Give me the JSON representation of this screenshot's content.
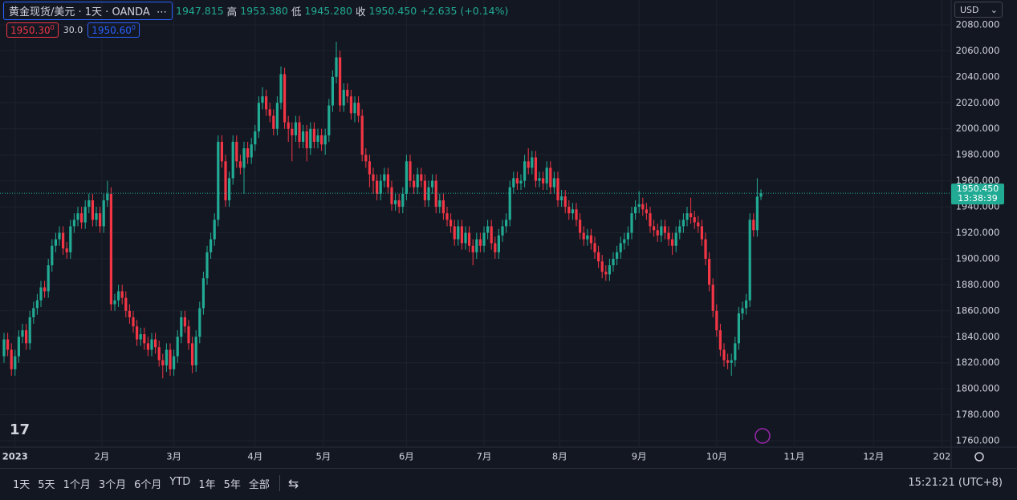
{
  "header": {
    "symbol": "黄金现货/美元 · 1天 · OANDA",
    "open": "1947.815",
    "high_label": "高",
    "high": "1953.380",
    "low_label": "低",
    "low": "1945.280",
    "close_label": "收",
    "close": "1950.450",
    "change": "+2.635 (+0.14%)"
  },
  "trade": {
    "sell": "1950.30",
    "sell_sup": "0",
    "spread": "30.0",
    "buy": "1950.60",
    "buy_sup": "0"
  },
  "currency": "USD",
  "toolbar": {
    "ranges": [
      "1天",
      "5天",
      "1个月",
      "3个月",
      "6个月",
      "YTD",
      "1年",
      "5年",
      "全部"
    ],
    "clock": "15:21:21 (UTC+8)"
  },
  "chart_data": {
    "type": "candlestick",
    "up_color": "#22ab94",
    "down_color": "#f23645",
    "grid": true,
    "open": [
      1825,
      1838,
      1830,
      1815,
      1825,
      1840,
      1845,
      1835,
      1855,
      1862,
      1868,
      1878,
      1875,
      1895,
      1910,
      1915,
      1920,
      1908,
      1905,
      1925,
      1930,
      1935,
      1928,
      1940,
      1945,
      1930,
      1935,
      1925,
      1945,
      1950,
      1865,
      1868,
      1875,
      1870,
      1860,
      1855,
      1848,
      1838,
      1842,
      1835,
      1830,
      1838,
      1832,
      1822,
      1818,
      1830,
      1815,
      1825,
      1840,
      1855,
      1848,
      1835,
      1818,
      1840,
      1862,
      1885,
      1905,
      1915,
      1930,
      1990,
      1975,
      1945,
      1962,
      1990,
      1975,
      1970,
      1985,
      1978,
      1988,
      1998,
      2020,
      2025,
      2015,
      2010,
      2000,
      2020,
      2042,
      2005,
      2000,
      1995,
      2005,
      1990,
      1998,
      1985,
      2000,
      1990,
      1995,
      1988,
      1995,
      2018,
      2040,
      2055,
      2018,
      2030,
      2025,
      2012,
      2020,
      2010,
      1980,
      1975,
      1965,
      1960,
      1950,
      1960,
      1965,
      1955,
      1942,
      1945,
      1940,
      1950,
      1975,
      1960,
      1955,
      1965,
      1960,
      1945,
      1955,
      1960,
      1940,
      1945,
      1935,
      1930,
      1925,
      1915,
      1925,
      1912,
      1920,
      1910,
      1905,
      1915,
      1910,
      1920,
      1925,
      1912,
      1905,
      1918,
      1925,
      1930,
      1955,
      1962,
      1958,
      1960,
      1975,
      1970,
      1978,
      1960,
      1962,
      1958,
      1970,
      1955,
      1962,
      1945,
      1948,
      1940,
      1935,
      1938,
      1930,
      1920,
      1915,
      1918,
      1912,
      1905,
      1898,
      1890,
      1888,
      1895,
      1900,
      1905,
      1912,
      1915,
      1920,
      1935,
      1940,
      1942,
      1938,
      1935,
      1925,
      1922,
      1918,
      1925,
      1920,
      1915,
      1910,
      1920,
      1925,
      1930,
      1935,
      1932,
      1928,
      1925,
      1915,
      1900,
      1880,
      1860,
      1845,
      1830,
      1822,
      1820,
      1822,
      1835,
      1858,
      1862,
      1868,
      1930,
      1922,
      1947.815
    ],
    "high": [
      1843,
      1843,
      1835,
      1830,
      1845,
      1850,
      1850,
      1860,
      1867,
      1873,
      1883,
      1883,
      1900,
      1915,
      1920,
      1925,
      1925,
      1913,
      1930,
      1935,
      1940,
      1940,
      1945,
      1950,
      1950,
      1940,
      1940,
      1950,
      1960,
      1955,
      1873,
      1880,
      1880,
      1875,
      1865,
      1860,
      1853,
      1847,
      1847,
      1840,
      1843,
      1843,
      1837,
      1827,
      1835,
      1835,
      1830,
      1845,
      1860,
      1860,
      1853,
      1840,
      1845,
      1867,
      1890,
      1910,
      1920,
      1935,
      1995,
      1995,
      1980,
      1967,
      1995,
      1995,
      1980,
      1990,
      1990,
      1993,
      2003,
      2025,
      2032,
      2030,
      2020,
      2015,
      2025,
      2048,
      2047,
      2010,
      2005,
      2010,
      2010,
      2003,
      2003,
      2005,
      2005,
      2000,
      2000,
      2000,
      2023,
      2045,
      2067,
      2060,
      2035,
      2035,
      2030,
      2025,
      2025,
      2015,
      1985,
      1980,
      1970,
      1965,
      1965,
      1970,
      1970,
      1960,
      1950,
      1950,
      1955,
      1980,
      1980,
      1965,
      1970,
      1970,
      1965,
      1960,
      1965,
      1965,
      1950,
      1950,
      1940,
      1935,
      1930,
      1930,
      1930,
      1925,
      1925,
      1915,
      1920,
      1920,
      1925,
      1930,
      1930,
      1917,
      1923,
      1930,
      1935,
      1960,
      1967,
      1967,
      1965,
      1980,
      1985,
      1983,
      1983,
      1967,
      1967,
      1975,
      1975,
      1967,
      1967,
      1953,
      1953,
      1945,
      1943,
      1943,
      1935,
      1925,
      1923,
      1923,
      1917,
      1910,
      1903,
      1895,
      1900,
      1905,
      1910,
      1917,
      1920,
      1925,
      1940,
      1945,
      1952,
      1947,
      1943,
      1940,
      1930,
      1927,
      1930,
      1930,
      1925,
      1920,
      1925,
      1930,
      1935,
      1940,
      1947,
      1937,
      1933,
      1930,
      1920,
      1905,
      1885,
      1865,
      1850,
      1835,
      1827,
      1827,
      1840,
      1863,
      1867,
      1873,
      1935,
      1935,
      1962,
      1953.38
    ],
    "low": [
      1820,
      1825,
      1810,
      1810,
      1820,
      1835,
      1830,
      1830,
      1850,
      1857,
      1863,
      1870,
      1870,
      1890,
      1905,
      1910,
      1903,
      1900,
      1900,
      1920,
      1925,
      1923,
      1923,
      1935,
      1925,
      1925,
      1920,
      1920,
      1940,
      1860,
      1860,
      1863,
      1865,
      1855,
      1850,
      1843,
      1833,
      1833,
      1830,
      1825,
      1825,
      1827,
      1817,
      1808,
      1813,
      1810,
      1810,
      1820,
      1835,
      1843,
      1830,
      1812,
      1813,
      1835,
      1857,
      1880,
      1900,
      1910,
      1925,
      1970,
      1940,
      1940,
      1957,
      1970,
      1965,
      1950,
      1973,
      1973,
      1983,
      1993,
      2015,
      2010,
      2005,
      1995,
      1995,
      2015,
      2000,
      1990,
      1975,
      1990,
      1985,
      1985,
      1975,
      1980,
      1985,
      1985,
      1983,
      1980,
      1990,
      2013,
      2035,
      2013,
      2013,
      2020,
      2007,
      2005,
      2005,
      1975,
      1970,
      1955,
      1950,
      1945,
      1945,
      1955,
      1950,
      1937,
      1937,
      1935,
      1935,
      1945,
      1955,
      1950,
      1950,
      1955,
      1940,
      1940,
      1950,
      1935,
      1935,
      1930,
      1925,
      1920,
      1910,
      1910,
      1907,
      1907,
      1905,
      1895,
      1900,
      1905,
      1905,
      1915,
      1907,
      1900,
      1900,
      1913,
      1920,
      1925,
      1950,
      1953,
      1953,
      1955,
      1965,
      1965,
      1955,
      1955,
      1953,
      1953,
      1950,
      1950,
      1940,
      1940,
      1935,
      1930,
      1930,
      1925,
      1915,
      1910,
      1910,
      1907,
      1900,
      1893,
      1885,
      1883,
      1883,
      1890,
      1895,
      1900,
      1907,
      1910,
      1915,
      1930,
      1935,
      1933,
      1930,
      1920,
      1917,
      1913,
      1913,
      1915,
      1910,
      1903,
      1905,
      1915,
      1920,
      1925,
      1927,
      1923,
      1920,
      1910,
      1895,
      1875,
      1855,
      1840,
      1825,
      1817,
      1815,
      1810,
      1817,
      1830,
      1853,
      1857,
      1863,
      1917,
      1917,
      1945.28
    ],
    "close": [
      1838,
      1830,
      1815,
      1825,
      1840,
      1845,
      1835,
      1855,
      1862,
      1868,
      1878,
      1875,
      1895,
      1910,
      1915,
      1920,
      1908,
      1905,
      1925,
      1930,
      1935,
      1928,
      1940,
      1945,
      1930,
      1935,
      1925,
      1945,
      1950,
      1865,
      1868,
      1875,
      1870,
      1860,
      1855,
      1848,
      1838,
      1842,
      1835,
      1830,
      1838,
      1832,
      1822,
      1818,
      1830,
      1815,
      1825,
      1840,
      1855,
      1848,
      1835,
      1818,
      1840,
      1862,
      1885,
      1905,
      1915,
      1930,
      1990,
      1975,
      1945,
      1962,
      1990,
      1975,
      1970,
      1985,
      1978,
      1988,
      1998,
      2020,
      2025,
      2015,
      2010,
      2000,
      2020,
      2042,
      2005,
      2000,
      1995,
      2005,
      1990,
      1998,
      1985,
      2000,
      1990,
      1995,
      1988,
      1995,
      2018,
      2040,
      2055,
      2018,
      2030,
      2025,
      2012,
      2020,
      2010,
      1980,
      1975,
      1965,
      1960,
      1950,
      1960,
      1965,
      1955,
      1942,
      1945,
      1940,
      1950,
      1975,
      1960,
      1955,
      1965,
      1960,
      1945,
      1955,
      1960,
      1940,
      1945,
      1935,
      1930,
      1925,
      1915,
      1925,
      1912,
      1920,
      1910,
      1905,
      1915,
      1910,
      1920,
      1925,
      1912,
      1905,
      1918,
      1925,
      1930,
      1955,
      1962,
      1958,
      1960,
      1975,
      1970,
      1978,
      1960,
      1962,
      1958,
      1970,
      1955,
      1962,
      1945,
      1948,
      1940,
      1935,
      1938,
      1930,
      1920,
      1915,
      1918,
      1912,
      1905,
      1898,
      1890,
      1888,
      1895,
      1900,
      1905,
      1912,
      1915,
      1920,
      1935,
      1940,
      1942,
      1938,
      1935,
      1925,
      1922,
      1918,
      1925,
      1920,
      1915,
      1910,
      1920,
      1925,
      1930,
      1935,
      1932,
      1928,
      1925,
      1915,
      1900,
      1880,
      1860,
      1845,
      1830,
      1822,
      1820,
      1822,
      1835,
      1858,
      1862,
      1868,
      1930,
      1922,
      1947.815,
      1950.45
    ],
    "ylim": [
      1755.1,
      2099.1
    ],
    "yticks": [
      {
        "value": 1760,
        "label": "1760.000"
      },
      {
        "value": 1780,
        "label": "1780.000"
      },
      {
        "value": 1800,
        "label": "1800.000"
      },
      {
        "value": 1820,
        "label": "1820.000"
      },
      {
        "value": 1840,
        "label": "1840.000"
      },
      {
        "value": 1860,
        "label": "1860.000"
      },
      {
        "value": 1880,
        "label": "1880.000"
      },
      {
        "value": 1900,
        "label": "1900.000"
      },
      {
        "value": 1920,
        "label": "1920.000"
      },
      {
        "value": 1940,
        "label": "1940.000"
      },
      {
        "value": 1960,
        "label": "1960.000"
      },
      {
        "value": 1980,
        "label": "1980.000"
      },
      {
        "value": 2000,
        "label": "2000.000"
      },
      {
        "value": 2020,
        "label": "2020.000"
      },
      {
        "value": 2040,
        "label": "2040.000"
      },
      {
        "value": 2060,
        "label": "2060.000"
      },
      {
        "value": 2080,
        "label": "2080.000"
      }
    ],
    "xlim": [
      -1.087,
      256.52
    ],
    "xticks": [
      {
        "value": 3,
        "label": "2023"
      },
      {
        "value": 26.5,
        "label": "2月"
      },
      {
        "value": 46,
        "label": "3月"
      },
      {
        "value": 68,
        "label": "4月"
      },
      {
        "value": 86.5,
        "label": "5月"
      },
      {
        "value": 109,
        "label": "6月"
      },
      {
        "value": 130,
        "label": "7月"
      },
      {
        "value": 150.5,
        "label": "8月"
      },
      {
        "value": 172,
        "label": "9月"
      },
      {
        "value": 193,
        "label": "10月"
      },
      {
        "value": 214,
        "label": "11月"
      },
      {
        "value": 235.5,
        "label": "12月"
      },
      {
        "value": 254,
        "label": "202"
      }
    ],
    "last_price_label": "1950.450",
    "countdown": "13:38:39"
  }
}
